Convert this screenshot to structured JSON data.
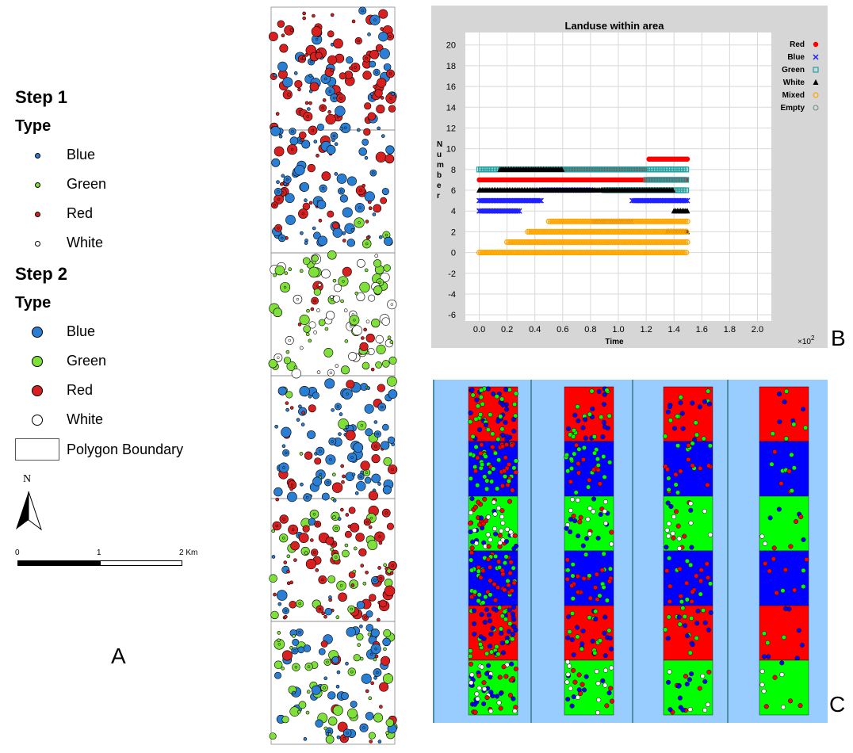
{
  "legend": {
    "step1_title": "Step 1",
    "step1_type": "Type",
    "step1_items": [
      {
        "label": "Blue",
        "color": "#2a7fd4"
      },
      {
        "label": "Green",
        "color": "#7fe03a"
      },
      {
        "label": "Red",
        "color": "#d92020"
      },
      {
        "label": "White",
        "color": "#ffffff"
      }
    ],
    "step2_title": "Step 2",
    "step2_type": "Type",
    "step2_items": [
      {
        "label": "Blue",
        "color": "#2a7fd4"
      },
      {
        "label": "Green",
        "color": "#7fe03a"
      },
      {
        "label": "Red",
        "color": "#d92020"
      },
      {
        "label": "White",
        "color": "#ffffff"
      }
    ],
    "boundary_label": "Polygon Boundary",
    "north_label": "N",
    "scale": {
      "ticks": [
        "0",
        "1",
        "2 Km"
      ]
    }
  },
  "panel_labels": {
    "a": "A",
    "b": "B",
    "c": "C"
  },
  "chart_data": {
    "type": "scatter",
    "title": "Landuse within area",
    "xlabel": "Time",
    "ylabel": "Number",
    "x_multiplier": "×10",
    "x_multiplier_exp": "2",
    "xlim": [
      -0.1,
      2.1
    ],
    "ylim": [
      -6.6,
      21.2
    ],
    "x_ticks": [
      "0.0",
      "0.2",
      "0.4",
      "0.6",
      "0.8",
      "1.0",
      "1.2",
      "1.4",
      "1.6",
      "1.8",
      "2.0"
    ],
    "y_ticks": [
      "20",
      "18",
      "16",
      "14",
      "12",
      "10",
      "8",
      "6",
      "4",
      "2",
      "0",
      "-2",
      "-4",
      "-6"
    ],
    "grid": true,
    "legend_position": "right",
    "series": [
      {
        "name": "Red",
        "color": "#ff0000",
        "marker": "circle-filled",
        "segments": [
          [
            0.0,
            1.5,
            7.0
          ],
          [
            1.22,
            1.5,
            9.0
          ],
          [
            0.6,
            1.2,
            8.0
          ]
        ]
      },
      {
        "name": "Blue",
        "color": "#2020ff",
        "marker": "x",
        "segments": [
          [
            0.0,
            0.45,
            5.0
          ],
          [
            0.45,
            0.82,
            6.0
          ],
          [
            0.82,
            1.1,
            3.0
          ],
          [
            1.1,
            1.5,
            5.0
          ],
          [
            0.0,
            0.3,
            4.0
          ]
        ]
      },
      {
        "name": "Green",
        "color": "#20a0a0",
        "marker": "square-open",
        "segments": [
          [
            0.0,
            1.5,
            8.0
          ],
          [
            0.9,
            1.5,
            6.0
          ],
          [
            1.2,
            1.5,
            7.0
          ]
        ]
      },
      {
        "name": "White",
        "color": "#000000",
        "marker": "triangle-filled",
        "segments": [
          [
            0.0,
            1.4,
            6.0
          ],
          [
            0.15,
            0.6,
            8.0
          ],
          [
            1.35,
            1.5,
            2.0
          ],
          [
            1.4,
            1.5,
            4.0
          ]
        ]
      },
      {
        "name": "Mixed",
        "color": "#ffa500",
        "marker": "diamond-open",
        "segments": [
          [
            0.0,
            1.5,
            0.0
          ],
          [
            0.2,
            1.5,
            1.0
          ],
          [
            0.35,
            1.5,
            2.0
          ],
          [
            0.5,
            1.5,
            3.0
          ]
        ]
      },
      {
        "name": "Empty",
        "color": "#6a8a8a",
        "marker": "circle-open",
        "segments": []
      }
    ]
  }
}
